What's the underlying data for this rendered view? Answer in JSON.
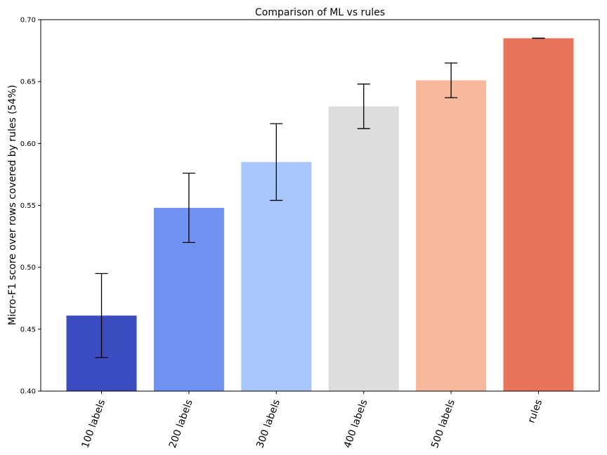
{
  "chart_data": {
    "type": "bar",
    "title": "Comparison of ML vs rules",
    "xlabel": "",
    "ylabel": "Micro-F1 score over rows covered by rules (54%)",
    "categories": [
      "100 labels",
      "200 labels",
      "300 labels",
      "400 labels",
      "500 labels",
      "rules"
    ],
    "values": [
      0.461,
      0.548,
      0.585,
      0.63,
      0.651,
      0.685
    ],
    "errors": [
      0.034,
      0.028,
      0.031,
      0.018,
      0.014,
      0.0
    ],
    "colors": [
      "#3b4cc0",
      "#7093f3",
      "#aac7fd",
      "#dddddd",
      "#f7b89c",
      "#e7745b"
    ],
    "ylim": [
      0.4,
      0.7
    ],
    "yticks": [
      "0.40",
      "0.45",
      "0.50",
      "0.55",
      "0.60",
      "0.65",
      "0.70"
    ],
    "grid": false,
    "legend": "none"
  }
}
